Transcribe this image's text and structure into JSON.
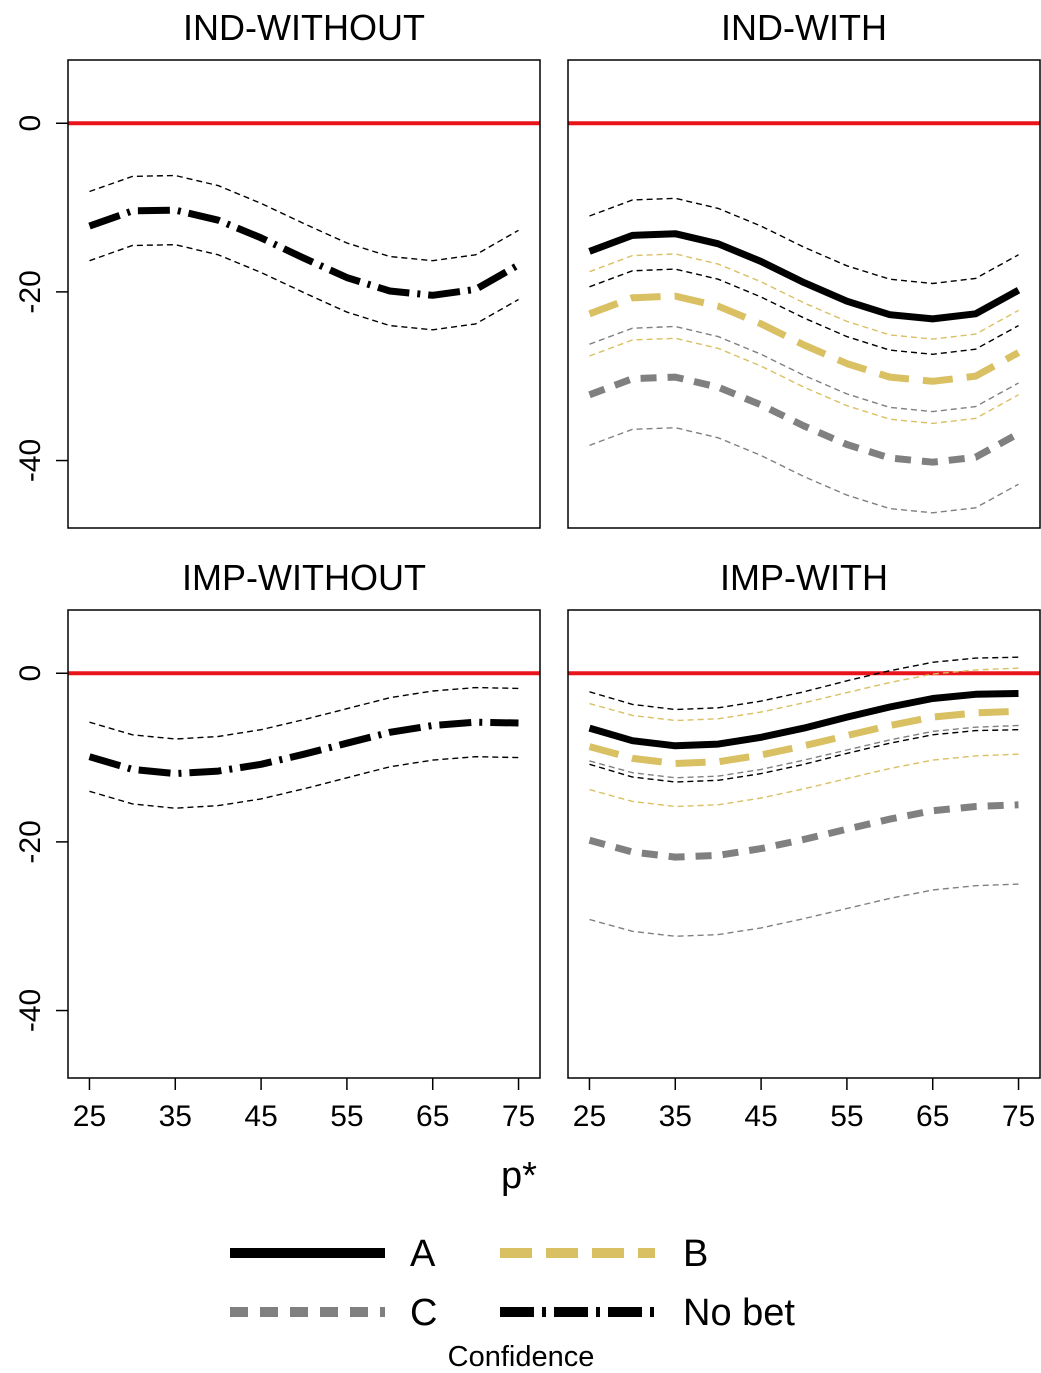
{
  "chart_data": {
    "type": "line",
    "xlabel": "p*",
    "ylabel": "",
    "xlim": [
      22.5,
      77.5
    ],
    "ylim": [
      -48,
      7.5
    ],
    "x_ticks": [
      25,
      35,
      45,
      55,
      65,
      75
    ],
    "x_tick_labels": [
      "25",
      "35",
      "45",
      "55",
      "65",
      "75"
    ],
    "y_ticks": [
      0,
      -20,
      -40
    ],
    "y_tick_labels": [
      "0",
      "-20",
      "-40"
    ],
    "reference_line": {
      "y": 0,
      "color": "#e8141a"
    },
    "grid": false,
    "colors": {
      "A": "#000000",
      "B": "#d9c063",
      "C": "#808080",
      "No bet": "#000000",
      "reference": "#e8141a"
    },
    "legend": {
      "title": "Confidence",
      "placement": "bottom",
      "entries": [
        {
          "label": "A",
          "key": "A"
        },
        {
          "label": "B",
          "key": "B"
        },
        {
          "label": "C",
          "key": "C"
        },
        {
          "label": "No bet",
          "key": "No bet"
        }
      ]
    },
    "panels": [
      {
        "title": "IND-WITHOUT",
        "series": [
          {
            "key": "No bet",
            "x": [
              25,
              30,
              35,
              40,
              45,
              50,
              55,
              60,
              65,
              70,
              75
            ],
            "y": [
              -12.2,
              -10.4,
              -10.3,
              -11.5,
              -13.6,
              -16.0,
              -18.3,
              -19.9,
              -20.4,
              -19.7,
              -16.8
            ],
            "upper": [
              -8.1,
              -6.3,
              -6.2,
              -7.4,
              -9.5,
              -11.9,
              -14.2,
              -15.8,
              -16.3,
              -15.6,
              -12.7
            ],
            "lower": [
              -16.3,
              -14.5,
              -14.4,
              -15.6,
              -17.7,
              -20.1,
              -22.4,
              -24.0,
              -24.5,
              -23.8,
              -20.9
            ]
          }
        ]
      },
      {
        "title": "IND-WITH",
        "series": [
          {
            "key": "A",
            "x": [
              25,
              30,
              35,
              40,
              45,
              50,
              55,
              60,
              65,
              70,
              75
            ],
            "y": [
              -15.2,
              -13.3,
              -13.1,
              -14.3,
              -16.4,
              -18.9,
              -21.1,
              -22.7,
              -23.2,
              -22.6,
              -19.8
            ],
            "upper": [
              -11.0,
              -9.1,
              -8.9,
              -10.1,
              -12.2,
              -14.7,
              -16.9,
              -18.5,
              -19.0,
              -18.4,
              -15.6
            ],
            "lower": [
              -19.4,
              -17.5,
              -17.3,
              -18.5,
              -20.6,
              -23.1,
              -25.3,
              -26.9,
              -27.4,
              -26.8,
              -24.0
            ]
          },
          {
            "key": "B",
            "x": [
              25,
              30,
              35,
              40,
              45,
              50,
              55,
              60,
              65,
              70,
              75
            ],
            "y": [
              -22.6,
              -20.7,
              -20.5,
              -21.7,
              -23.8,
              -26.3,
              -28.5,
              -30.1,
              -30.6,
              -30.0,
              -27.2
            ],
            "upper": [
              -17.6,
              -15.7,
              -15.5,
              -16.7,
              -18.8,
              -21.3,
              -23.5,
              -25.1,
              -25.6,
              -25.0,
              -22.2
            ],
            "lower": [
              -27.6,
              -25.7,
              -25.5,
              -26.7,
              -28.8,
              -31.3,
              -33.5,
              -35.1,
              -35.6,
              -35.0,
              -32.2
            ]
          },
          {
            "key": "C",
            "x": [
              25,
              30,
              35,
              40,
              45,
              50,
              55,
              60,
              65,
              70,
              75
            ],
            "y": [
              -32.2,
              -30.3,
              -30.1,
              -31.3,
              -33.4,
              -35.9,
              -38.1,
              -39.7,
              -40.2,
              -39.6,
              -36.8
            ],
            "upper": [
              -26.2,
              -24.3,
              -24.1,
              -25.3,
              -27.4,
              -29.9,
              -32.1,
              -33.7,
              -34.2,
              -33.6,
              -30.8
            ],
            "lower": [
              -38.2,
              -36.3,
              -36.1,
              -37.3,
              -39.4,
              -41.9,
              -44.1,
              -45.7,
              -46.2,
              -45.6,
              -42.8
            ]
          }
        ]
      },
      {
        "title": "IMP-WITHOUT",
        "series": [
          {
            "key": "No bet",
            "x": [
              25,
              30,
              35,
              40,
              45,
              50,
              55,
              60,
              65,
              70,
              75
            ],
            "y": [
              -9.9,
              -11.4,
              -11.9,
              -11.6,
              -10.8,
              -9.6,
              -8.3,
              -7.0,
              -6.2,
              -5.8,
              -5.9
            ],
            "upper": [
              -5.8,
              -7.3,
              -7.8,
              -7.5,
              -6.7,
              -5.5,
              -4.2,
              -2.9,
              -2.1,
              -1.7,
              -1.8
            ],
            "lower": [
              -14.0,
              -15.5,
              -16.0,
              -15.7,
              -14.9,
              -13.7,
              -12.4,
              -11.1,
              -10.3,
              -9.9,
              -10.0
            ]
          }
        ]
      },
      {
        "title": "IMP-WITH",
        "series": [
          {
            "key": "A",
            "x": [
              25,
              30,
              35,
              40,
              45,
              50,
              55,
              60,
              65,
              70,
              75
            ],
            "y": [
              -6.5,
              -8.0,
              -8.6,
              -8.4,
              -7.6,
              -6.5,
              -5.2,
              -4.0,
              -3.0,
              -2.5,
              -2.4
            ],
            "upper": [
              -2.2,
              -3.7,
              -4.3,
              -4.1,
              -3.3,
              -2.2,
              -0.9,
              0.3,
              1.3,
              1.8,
              1.9
            ],
            "lower": [
              -10.8,
              -12.3,
              -12.9,
              -12.7,
              -11.9,
              -10.8,
              -9.5,
              -8.3,
              -7.3,
              -6.8,
              -6.7
            ]
          },
          {
            "key": "B",
            "x": [
              25,
              30,
              35,
              40,
              45,
              50,
              55,
              60,
              65,
              70,
              75
            ],
            "y": [
              -8.7,
              -10.1,
              -10.7,
              -10.5,
              -9.7,
              -8.6,
              -7.4,
              -6.2,
              -5.2,
              -4.7,
              -4.5
            ],
            "upper": [
              -3.6,
              -5.0,
              -5.6,
              -5.4,
              -4.6,
              -3.5,
              -2.3,
              -1.1,
              -0.1,
              0.4,
              0.6
            ],
            "lower": [
              -13.8,
              -15.2,
              -15.8,
              -15.6,
              -14.8,
              -13.7,
              -12.5,
              -11.3,
              -10.3,
              -9.8,
              -9.6
            ]
          },
          {
            "key": "C",
            "x": [
              25,
              30,
              35,
              40,
              45,
              50,
              55,
              60,
              65,
              70,
              75
            ],
            "y": [
              -19.8,
              -21.2,
              -21.8,
              -21.6,
              -20.8,
              -19.7,
              -18.5,
              -17.3,
              -16.3,
              -15.8,
              -15.6
            ],
            "upper": [
              -10.4,
              -11.8,
              -12.4,
              -12.2,
              -11.4,
              -10.3,
              -9.1,
              -7.9,
              -6.9,
              -6.4,
              -6.2
            ],
            "lower": [
              -29.2,
              -30.6,
              -31.2,
              -31.0,
              -30.2,
              -29.1,
              -27.9,
              -26.7,
              -25.7,
              -25.2,
              -25.0
            ]
          }
        ]
      }
    ]
  }
}
